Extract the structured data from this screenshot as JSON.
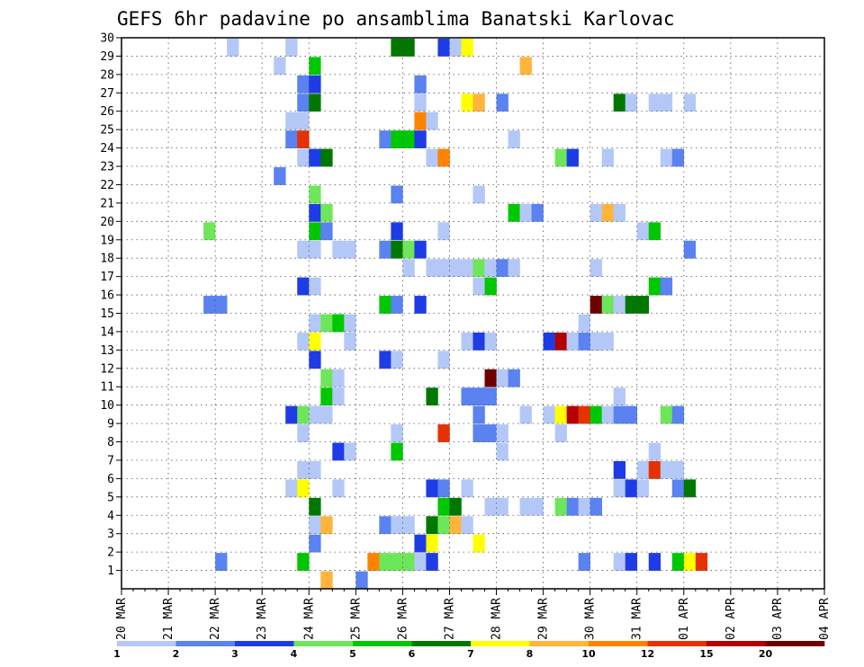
{
  "chart_data": {
    "type": "heatmap",
    "title": "GEFS 6hr padavine po ansamblima Banatski Karlovac",
    "x_ticks": [
      "20 MAR",
      "21 MAR",
      "22 MAR",
      "23 MAR",
      "24 MAR",
      "25 MAR",
      "26 MAR",
      "27 MAR",
      "28 MAR",
      "29 MAR",
      "30 MAR",
      "31 MAR",
      "01 APR",
      "02 APR",
      "03 APR",
      "04 APR"
    ],
    "y_ticks": [
      1,
      2,
      3,
      4,
      5,
      6,
      7,
      8,
      9,
      10,
      11,
      12,
      13,
      14,
      15,
      16,
      17,
      18,
      19,
      20,
      21,
      22,
      23,
      24,
      25,
      26,
      27,
      28,
      29,
      30
    ],
    "x_range": [
      "20 MAR 00Z",
      "04 APR 00Z"
    ],
    "time_step_hours": 6,
    "ylim": [
      0,
      30
    ],
    "grid": "dotted",
    "legend": {
      "position": "bottom",
      "labels": [
        "1",
        "2",
        "3",
        "4",
        "5",
        "6",
        "7",
        "8",
        "10",
        "12",
        "15",
        "20"
      ],
      "colors": [
        "#b4c8f8",
        "#5a82f0",
        "#1e3ce6",
        "#6ee65a",
        "#00c800",
        "#007800",
        "#ffff00",
        "#ffb43c",
        "#ff8200",
        "#e63200",
        "#b40000",
        "#6e0000"
      ]
    },
    "cells_note": "each cell: [member, 6h step index from 20 MAR 00Z, colour class 0-12]",
    "cells": [
      [
        30,
        9,
        1
      ],
      [
        30,
        14,
        1
      ],
      [
        30,
        23,
        6
      ],
      [
        30,
        24,
        6
      ],
      [
        30,
        27,
        3
      ],
      [
        30,
        28,
        1
      ],
      [
        30,
        29,
        7
      ],
      [
        29,
        13,
        1
      ],
      [
        29,
        16,
        5
      ],
      [
        29,
        34,
        8
      ],
      [
        28,
        15,
        2
      ],
      [
        28,
        16,
        3
      ],
      [
        28,
        25,
        2
      ],
      [
        27,
        15,
        2
      ],
      [
        27,
        16,
        6
      ],
      [
        27,
        25,
        1
      ],
      [
        27,
        29,
        7
      ],
      [
        27,
        30,
        8
      ],
      [
        27,
        32,
        2
      ],
      [
        27,
        42,
        6
      ],
      [
        27,
        43,
        1
      ],
      [
        27,
        45,
        1
      ],
      [
        27,
        46,
        1
      ],
      [
        27,
        48,
        1
      ],
      [
        26,
        14,
        1
      ],
      [
        26,
        15,
        1
      ],
      [
        26,
        25,
        9
      ],
      [
        26,
        26,
        1
      ],
      [
        25,
        14,
        2
      ],
      [
        25,
        15,
        10
      ],
      [
        25,
        22,
        2
      ],
      [
        25,
        23,
        5
      ],
      [
        25,
        24,
        5
      ],
      [
        25,
        25,
        3
      ],
      [
        25,
        33,
        1
      ],
      [
        24,
        15,
        1
      ],
      [
        24,
        16,
        3
      ],
      [
        24,
        17,
        6
      ],
      [
        24,
        26,
        1
      ],
      [
        24,
        27,
        9
      ],
      [
        24,
        37,
        4
      ],
      [
        24,
        38,
        3
      ],
      [
        24,
        41,
        1
      ],
      [
        24,
        46,
        1
      ],
      [
        24,
        47,
        2
      ],
      [
        23,
        13,
        2
      ],
      [
        22,
        16,
        4
      ],
      [
        22,
        23,
        2
      ],
      [
        22,
        30,
        1
      ],
      [
        21,
        16,
        3
      ],
      [
        21,
        17,
        4
      ],
      [
        21,
        33,
        5
      ],
      [
        21,
        34,
        1
      ],
      [
        21,
        35,
        2
      ],
      [
        21,
        40,
        1
      ],
      [
        21,
        41,
        8
      ],
      [
        21,
        42,
        1
      ],
      [
        20,
        7,
        4
      ],
      [
        20,
        16,
        5
      ],
      [
        20,
        17,
        2
      ],
      [
        20,
        23,
        3
      ],
      [
        20,
        27,
        1
      ],
      [
        20,
        44,
        1
      ],
      [
        20,
        45,
        5
      ],
      [
        19,
        15,
        1
      ],
      [
        19,
        16,
        1
      ],
      [
        19,
        18,
        1
      ],
      [
        19,
        19,
        1
      ],
      [
        19,
        22,
        2
      ],
      [
        19,
        23,
        6
      ],
      [
        19,
        24,
        4
      ],
      [
        19,
        25,
        3
      ],
      [
        19,
        48,
        2
      ],
      [
        18,
        24,
        1
      ],
      [
        18,
        26,
        1
      ],
      [
        18,
        27,
        1
      ],
      [
        18,
        28,
        1
      ],
      [
        18,
        29,
        1
      ],
      [
        18,
        30,
        4
      ],
      [
        18,
        31,
        1
      ],
      [
        18,
        32,
        2
      ],
      [
        18,
        33,
        1
      ],
      [
        18,
        40,
        1
      ],
      [
        17,
        15,
        3
      ],
      [
        17,
        16,
        1
      ],
      [
        17,
        30,
        1
      ],
      [
        17,
        31,
        5
      ],
      [
        17,
        45,
        5
      ],
      [
        17,
        46,
        2
      ],
      [
        16,
        7,
        2
      ],
      [
        16,
        8,
        2
      ],
      [
        16,
        22,
        5
      ],
      [
        16,
        23,
        2
      ],
      [
        16,
        25,
        3
      ],
      [
        16,
        40,
        12
      ],
      [
        16,
        41,
        4
      ],
      [
        16,
        42,
        1
      ],
      [
        16,
        43,
        6
      ],
      [
        16,
        44,
        6
      ],
      [
        15,
        16,
        1
      ],
      [
        15,
        17,
        4
      ],
      [
        15,
        18,
        5
      ],
      [
        15,
        19,
        1
      ],
      [
        15,
        39,
        1
      ],
      [
        14,
        15,
        1
      ],
      [
        14,
        16,
        7
      ],
      [
        14,
        19,
        1
      ],
      [
        14,
        29,
        1
      ],
      [
        14,
        30,
        3
      ],
      [
        14,
        31,
        1
      ],
      [
        14,
        36,
        3
      ],
      [
        14,
        37,
        11
      ],
      [
        14,
        38,
        1
      ],
      [
        14,
        39,
        2
      ],
      [
        14,
        40,
        3
      ],
      [
        14,
        40,
        1
      ],
      [
        14,
        41,
        1
      ],
      [
        13,
        16,
        3
      ],
      [
        13,
        22,
        3
      ],
      [
        13,
        23,
        1
      ],
      [
        13,
        27,
        1
      ],
      [
        12,
        17,
        4
      ],
      [
        12,
        18,
        1
      ],
      [
        12,
        31,
        12
      ],
      [
        12,
        32,
        1
      ],
      [
        12,
        33,
        2
      ],
      [
        11,
        17,
        5
      ],
      [
        11,
        18,
        1
      ],
      [
        11,
        26,
        6
      ],
      [
        11,
        29,
        2
      ],
      [
        11,
        30,
        2
      ],
      [
        11,
        31,
        2
      ],
      [
        11,
        42,
        1
      ],
      [
        10,
        14,
        3
      ],
      [
        10,
        15,
        4
      ],
      [
        10,
        16,
        1
      ],
      [
        10,
        17,
        1
      ],
      [
        10,
        30,
        2
      ],
      [
        10,
        34,
        1
      ],
      [
        10,
        36,
        1
      ],
      [
        10,
        37,
        7
      ],
      [
        10,
        38,
        11
      ],
      [
        10,
        39,
        10
      ],
      [
        10,
        40,
        5
      ],
      [
        10,
        41,
        1
      ],
      [
        10,
        42,
        2
      ],
      [
        10,
        43,
        2
      ],
      [
        10,
        46,
        4
      ],
      [
        10,
        47,
        2
      ],
      [
        9,
        15,
        1
      ],
      [
        9,
        23,
        1
      ],
      [
        9,
        27,
        10
      ],
      [
        9,
        30,
        2
      ],
      [
        9,
        31,
        2
      ],
      [
        9,
        32,
        1
      ],
      [
        9,
        37,
        1
      ],
      [
        8,
        18,
        3
      ],
      [
        8,
        19,
        1
      ],
      [
        8,
        23,
        5
      ],
      [
        8,
        32,
        1
      ],
      [
        8,
        45,
        1
      ],
      [
        7,
        15,
        1
      ],
      [
        7,
        16,
        1
      ],
      [
        7,
        42,
        3
      ],
      [
        7,
        44,
        1
      ],
      [
        7,
        45,
        10
      ],
      [
        7,
        46,
        1
      ],
      [
        7,
        47,
        1
      ],
      [
        6,
        14,
        1
      ],
      [
        6,
        15,
        7
      ],
      [
        6,
        18,
        1
      ],
      [
        6,
        26,
        3
      ],
      [
        6,
        27,
        2
      ],
      [
        6,
        29,
        1
      ],
      [
        6,
        42,
        1
      ],
      [
        6,
        43,
        3
      ],
      [
        6,
        44,
        1
      ],
      [
        6,
        47,
        2
      ],
      [
        6,
        48,
        6
      ],
      [
        5,
        16,
        6
      ],
      [
        5,
        27,
        5
      ],
      [
        5,
        28,
        6
      ],
      [
        5,
        31,
        1
      ],
      [
        5,
        32,
        1
      ],
      [
        5,
        34,
        1
      ],
      [
        5,
        35,
        1
      ],
      [
        5,
        37,
        4
      ],
      [
        5,
        38,
        2
      ],
      [
        5,
        39,
        1
      ],
      [
        5,
        40,
        2
      ],
      [
        4,
        16,
        1
      ],
      [
        4,
        17,
        8
      ],
      [
        4,
        22,
        2
      ],
      [
        4,
        23,
        1
      ],
      [
        4,
        24,
        1
      ],
      [
        4,
        26,
        6
      ],
      [
        4,
        27,
        4
      ],
      [
        4,
        28,
        8
      ],
      [
        4,
        29,
        1
      ],
      [
        3,
        16,
        2
      ],
      [
        3,
        25,
        3
      ],
      [
        3,
        26,
        7
      ],
      [
        3,
        30,
        7
      ],
      [
        2,
        8,
        2
      ],
      [
        2,
        15,
        5
      ],
      [
        2,
        21,
        9
      ],
      [
        2,
        22,
        4
      ],
      [
        2,
        23,
        4
      ],
      [
        2,
        24,
        4
      ],
      [
        2,
        25,
        1
      ],
      [
        2,
        26,
        3
      ],
      [
        2,
        39,
        2
      ],
      [
        2,
        42,
        1
      ],
      [
        2,
        43,
        3
      ],
      [
        2,
        45,
        3
      ],
      [
        2,
        47,
        5
      ],
      [
        2,
        48,
        7
      ],
      [
        2,
        49,
        10
      ],
      [
        1,
        17,
        8
      ],
      [
        1,
        20,
        2
      ]
    ]
  }
}
